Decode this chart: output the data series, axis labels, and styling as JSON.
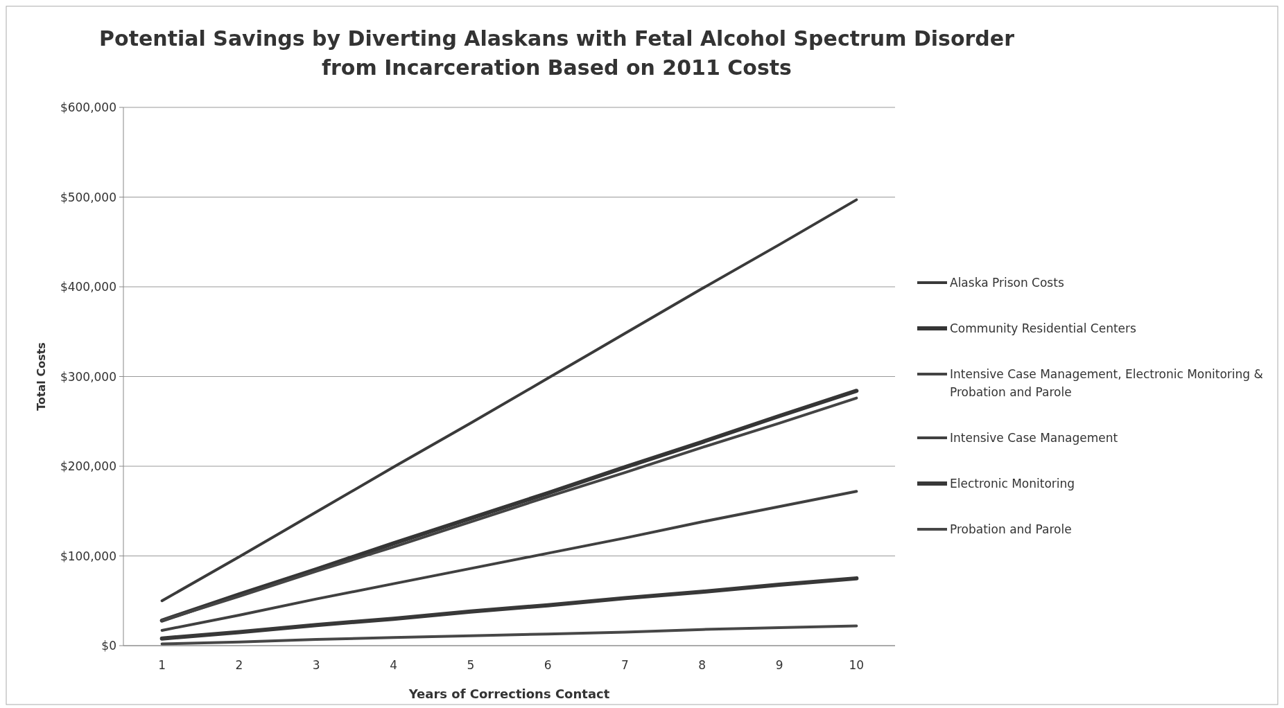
{
  "chart_data": {
    "type": "line",
    "title": "Potential Savings by Diverting Alaskans with Fetal Alcohol Spectrum Disorder from Incarceration Based on 2011 Costs",
    "xlabel": "Years of Corrections Contact",
    "ylabel": "Total Costs",
    "categories": [
      "1",
      "2",
      "3",
      "4",
      "5",
      "6",
      "7",
      "8",
      "9",
      "10"
    ],
    "ylim": [
      0,
      600000
    ],
    "yticks": [
      {
        "value": 0,
        "label": "$0"
      },
      {
        "value": 100000,
        "label": "$100,000"
      },
      {
        "value": 200000,
        "label": "$200,000"
      },
      {
        "value": 300000,
        "label": "$300,000"
      },
      {
        "value": 400000,
        "label": "$400,000"
      },
      {
        "value": 500000,
        "label": "$500,000"
      },
      {
        "value": 600000,
        "label": "$600,000"
      }
    ],
    "grid": "y",
    "legend": "right",
    "marker": "none",
    "line_style": "solid",
    "series": [
      {
        "name": "Alaska Prison Costs",
        "color": "#3a3a3a",
        "values": [
          50000,
          99000,
          149000,
          199000,
          248000,
          298000,
          348000,
          398000,
          447000,
          497000
        ]
      },
      {
        "name": "Community Residential Centers",
        "color": "#353535",
        "values": [
          28000,
          57000,
          85000,
          114000,
          142000,
          170000,
          199000,
          227000,
          256000,
          284000
        ]
      },
      {
        "name": "Intensive Case Management, Electronic Monitoring & Probation and Parole",
        "color": "#444444",
        "values": [
          28000,
          55000,
          83000,
          110000,
          138000,
          166000,
          193000,
          221000,
          248000,
          276000
        ]
      },
      {
        "name": "Intensive Case Management",
        "color": "#404040",
        "values": [
          17000,
          34000,
          52000,
          69000,
          86000,
          103000,
          120000,
          138000,
          155000,
          172000
        ]
      },
      {
        "name": "Electronic Monitoring",
        "color": "#383838",
        "values": [
          8000,
          15000,
          23000,
          30000,
          38000,
          45000,
          53000,
          60000,
          68000,
          75000
        ]
      },
      {
        "name": "Probation and Parole",
        "color": "#474747",
        "values": [
          2000,
          4000,
          7000,
          9000,
          11000,
          13000,
          15000,
          18000,
          20000,
          22000
        ]
      }
    ]
  }
}
